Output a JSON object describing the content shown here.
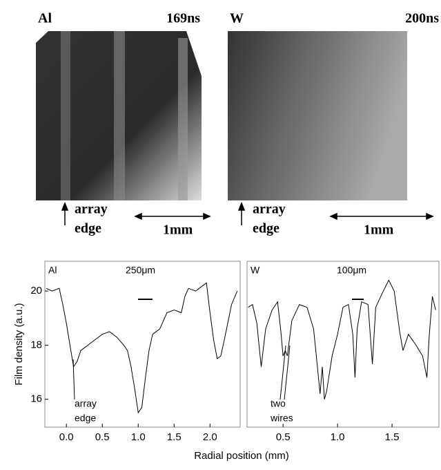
{
  "panels": [
    {
      "material": "Al",
      "time": "169ns",
      "edge_label": [
        "array",
        "edge"
      ],
      "scale": "1mm"
    },
    {
      "material": "W",
      "time": "200ns",
      "edge_label": [
        "array",
        "edge"
      ],
      "scale": "1mm"
    }
  ],
  "chart_data": [
    {
      "type": "line",
      "y_label": "Film density (a.u.)",
      "x_label": "Radial position (mm)",
      "annotations": [
        "Al",
        "250μm",
        "array",
        "edge"
      ],
      "xlim": [
        -0.3,
        2.42
      ],
      "ylim": [
        14.97,
        21.1
      ],
      "xticks": [
        {
          "value": 0,
          "label": "0.0"
        },
        0.5,
        {
          "value": 1,
          "label": "1.0"
        },
        1.5,
        {
          "value": 2,
          "label": "2.0"
        }
      ],
      "yticks": [
        16,
        18,
        20
      ],
      "series": [
        {
          "color": "#000000",
          "x": [
            -0.28,
            -0.2,
            -0.1,
            -0.05,
            0.0,
            0.05,
            0.1,
            0.15,
            0.2,
            0.3,
            0.4,
            0.5,
            0.6,
            0.7,
            0.8,
            0.85,
            0.9,
            0.95,
            1.0,
            1.05,
            1.1,
            1.15,
            1.2,
            1.3,
            1.4,
            1.5,
            1.6,
            1.65,
            1.7,
            1.8,
            1.9,
            1.95,
            2.0,
            2.05,
            2.1,
            2.15,
            2.2,
            2.3,
            2.38
          ],
          "values": [
            20.1,
            20.0,
            20.1,
            19.5,
            18.8,
            18.0,
            17.2,
            17.4,
            17.8,
            18.0,
            18.2,
            18.4,
            18.5,
            18.3,
            18.0,
            17.8,
            17.2,
            16.4,
            15.5,
            15.7,
            16.8,
            17.8,
            18.4,
            18.6,
            19.2,
            19.3,
            19.2,
            19.8,
            20.1,
            20.0,
            20.2,
            20.3,
            19.2,
            18.2,
            17.5,
            17.6,
            18.2,
            19.5,
            20.0
          ]
        }
      ]
    },
    {
      "type": "line",
      "annotations": [
        "W",
        "100μm",
        "two",
        "wires"
      ],
      "xlim": [
        0.17,
        1.93
      ],
      "ylim": [
        14.97,
        21.1
      ],
      "xticks": [
        0.5,
        {
          "value": 1,
          "label": "1.0"
        },
        1.5
      ],
      "series": [
        {
          "color": "#000000",
          "x": [
            0.18,
            0.22,
            0.26,
            0.3,
            0.34,
            0.4,
            0.45,
            0.48,
            0.5,
            0.52,
            0.54,
            0.58,
            0.65,
            0.72,
            0.78,
            0.82,
            0.84,
            0.86,
            0.88,
            0.9,
            0.95,
            1.0,
            1.05,
            1.1,
            1.14,
            1.16,
            1.18,
            1.22,
            1.28,
            1.32,
            1.35,
            1.42,
            1.47,
            1.52,
            1.57,
            1.6,
            1.65,
            1.72,
            1.78,
            1.82,
            1.84,
            1.87,
            1.9
          ],
          "values": [
            19.4,
            19.5,
            18.8,
            17.2,
            18.6,
            19.3,
            19.6,
            18.5,
            17.6,
            17.8,
            17.6,
            18.9,
            19.5,
            19.4,
            18.6,
            17.0,
            16.2,
            17.2,
            16.0,
            16.3,
            17.6,
            18.4,
            19.4,
            19.5,
            18.4,
            16.8,
            18.6,
            19.6,
            19.5,
            17.3,
            19.4,
            20.0,
            20.4,
            20.0,
            18.5,
            17.8,
            18.4,
            18.0,
            17.6,
            16.8,
            18.3,
            19.8,
            19.3
          ]
        }
      ]
    }
  ]
}
